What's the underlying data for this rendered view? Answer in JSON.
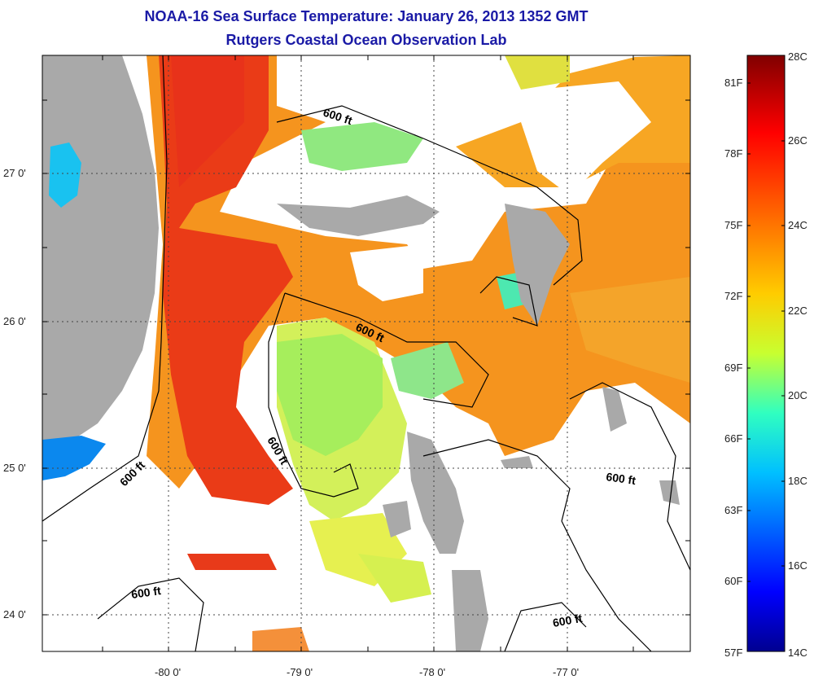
{
  "title": "NOAA-16 Sea Surface Temperature:  January 26, 2013 1352 GMT",
  "subtitle": "Rutgers Coastal Ocean Observation Lab",
  "map": {
    "lat_ticks": [
      "27 0'",
      "26 0'",
      "25 0'",
      "24 0'"
    ],
    "lon_ticks": [
      "-80 0'",
      "-79 0'",
      "-78 0'",
      "-77 0'"
    ],
    "contour_label": "600 ft",
    "colors": {
      "land": "#a9a9a9",
      "cloud": "#ffffff",
      "contour": "#000000"
    }
  },
  "colorbar": {
    "fahrenheit": [
      "81F",
      "78F",
      "75F",
      "72F",
      "69F",
      "66F",
      "63F",
      "60F",
      "57F"
    ],
    "celsius": [
      "28C",
      "26C",
      "24C",
      "22C",
      "20C",
      "18C",
      "16C",
      "14C"
    ]
  }
}
